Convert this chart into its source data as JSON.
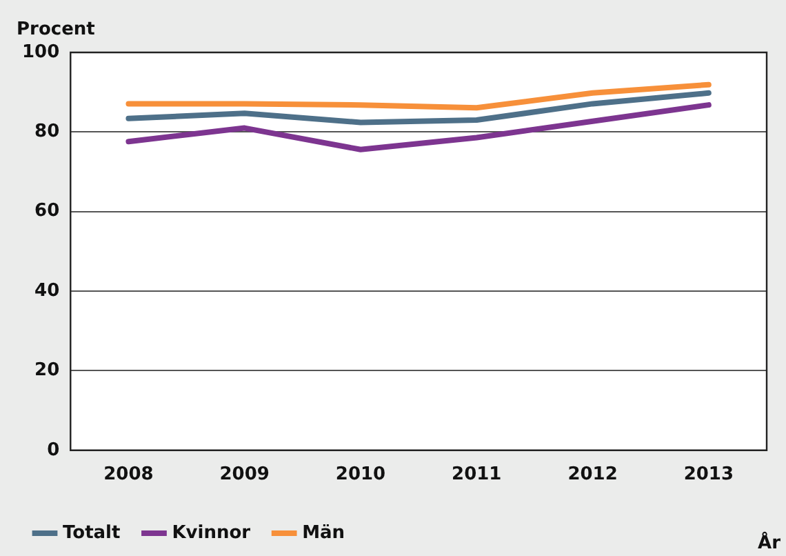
{
  "chart_data": {
    "type": "line",
    "ylabel": "Procent",
    "xlabel": "År",
    "categories": [
      "2008",
      "2009",
      "2010",
      "2011",
      "2012",
      "2013"
    ],
    "series": [
      {
        "name": "Totalt",
        "color": "#4e7089",
        "values": [
          83.4,
          84.7,
          82.4,
          83,
          87.1,
          89.8
        ]
      },
      {
        "name": "Kvinnor",
        "color": "#7d3590",
        "values": [
          77.6,
          81,
          75.6,
          78.6,
          82.7,
          86.8
        ]
      },
      {
        "name": "Män",
        "color": "#f7903a",
        "values": [
          87.1,
          87.1,
          86.8,
          86.1,
          89.8,
          91.9
        ]
      }
    ],
    "ylim": [
      0,
      100
    ],
    "yticks": [
      0,
      20,
      40,
      60,
      80,
      100
    ],
    "grid": "y",
    "legend": "bottom",
    "marker": "none",
    "line_style": "solid"
  }
}
